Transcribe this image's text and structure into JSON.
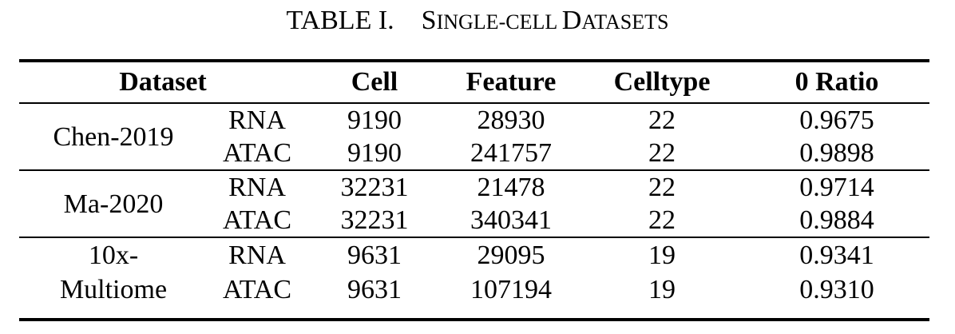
{
  "caption": {
    "number": "TABLE I.",
    "title_big_1": "S",
    "title_small_1": "INGLE-CELL ",
    "title_big_2": "D",
    "title_small_2": "ATASETS"
  },
  "table": {
    "headers": {
      "dataset": "Dataset",
      "cell": "Cell",
      "feature": "Feature",
      "celltype": "Celltype",
      "zero_ratio": "0 Ratio"
    },
    "groups": [
      {
        "name": "Chen-2019",
        "rows": [
          {
            "modality": "RNA",
            "cell": "9190",
            "feature": "28930",
            "celltype": "22",
            "zero_ratio": "0.9675"
          },
          {
            "modality": "ATAC",
            "cell": "9190",
            "feature": "241757",
            "celltype": "22",
            "zero_ratio": "0.9898"
          }
        ]
      },
      {
        "name": "Ma-2020",
        "rows": [
          {
            "modality": "RNA",
            "cell": "32231",
            "feature": "21478",
            "celltype": "22",
            "zero_ratio": "0.9714"
          },
          {
            "modality": "ATAC",
            "cell": "32231",
            "feature": "340341",
            "celltype": "22",
            "zero_ratio": "0.9884"
          }
        ]
      },
      {
        "name": "10x-Multiome",
        "rows": [
          {
            "modality": "RNA",
            "cell": "9631",
            "feature": "29095",
            "celltype": "19",
            "zero_ratio": "0.9341"
          },
          {
            "modality": "ATAC",
            "cell": "9631",
            "feature": "107194",
            "celltype": "19",
            "zero_ratio": "0.9310"
          }
        ]
      }
    ]
  }
}
